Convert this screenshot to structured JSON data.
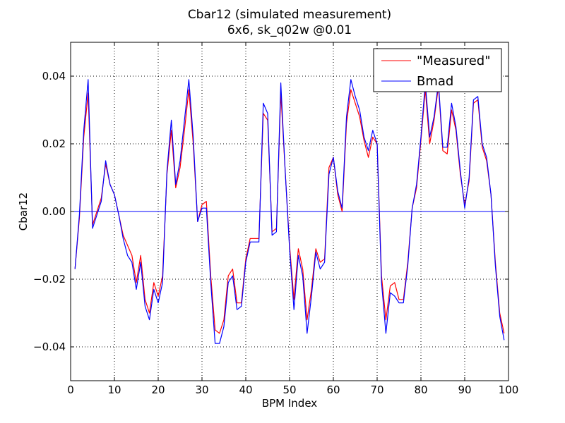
{
  "chart_data": {
    "type": "line",
    "title": "Cbar12 (simulated measurement)",
    "subtitle": "6x6, sk_q02w @0.01",
    "xlabel": "BPM Index",
    "ylabel": "Cbar12",
    "xlim": [
      0,
      100
    ],
    "ylim": [
      -0.05,
      0.05
    ],
    "xticks": [
      0,
      10,
      20,
      30,
      40,
      50,
      60,
      70,
      80,
      90,
      100
    ],
    "yticks": [
      -0.04,
      -0.02,
      0.0,
      0.02,
      0.04
    ],
    "xtick_labels": [
      "0",
      "10",
      "20",
      "30",
      "40",
      "50",
      "60",
      "70",
      "80",
      "90",
      "100"
    ],
    "ytick_labels": [
      "−0.04",
      "−0.02",
      "0.00",
      "0.02",
      "0.04"
    ],
    "grid": true,
    "legend_position": "top-right",
    "zero_line": true,
    "x": [
      1,
      2,
      3,
      4,
      5,
      6,
      7,
      8,
      9,
      10,
      11,
      12,
      13,
      14,
      15,
      16,
      17,
      18,
      19,
      20,
      21,
      22,
      23,
      24,
      25,
      26,
      27,
      28,
      29,
      30,
      31,
      32,
      33,
      34,
      35,
      36,
      37,
      38,
      39,
      40,
      41,
      42,
      43,
      44,
      45,
      46,
      47,
      48,
      49,
      50,
      51,
      52,
      53,
      54,
      55,
      56,
      57,
      58,
      59,
      60,
      61,
      62,
      63,
      64,
      65,
      66,
      67,
      68,
      69,
      70,
      71,
      72,
      73,
      74,
      75,
      76,
      77,
      78,
      79,
      80,
      81,
      82,
      83,
      84,
      85,
      86,
      87,
      88,
      89,
      90,
      91,
      92,
      93,
      94,
      95,
      96,
      97,
      98,
      99
    ],
    "series": [
      {
        "name": "\"Measured\"",
        "color": "#ff0000",
        "values": [
          -0.017,
          -0.002,
          0.022,
          0.035,
          -0.004,
          0.0,
          0.004,
          0.014,
          0.008,
          0.005,
          -0.001,
          -0.007,
          -0.01,
          -0.013,
          -0.021,
          -0.013,
          -0.026,
          -0.03,
          -0.021,
          -0.025,
          -0.019,
          0.011,
          0.024,
          0.007,
          0.013,
          0.024,
          0.036,
          0.02,
          -0.003,
          0.002,
          0.003,
          -0.019,
          -0.035,
          -0.036,
          -0.032,
          -0.019,
          -0.017,
          -0.027,
          -0.027,
          -0.014,
          -0.008,
          -0.008,
          -0.008,
          0.029,
          0.027,
          -0.006,
          -0.005,
          0.035,
          0.012,
          -0.01,
          -0.026,
          -0.011,
          -0.017,
          -0.032,
          -0.023,
          -0.011,
          -0.015,
          -0.014,
          0.013,
          0.016,
          0.005,
          0.0,
          0.026,
          0.036,
          0.032,
          0.028,
          0.021,
          0.016,
          0.022,
          0.02,
          -0.019,
          -0.032,
          -0.022,
          -0.021,
          -0.026,
          -0.026,
          -0.015,
          0.001,
          0.007,
          0.021,
          0.036,
          0.02,
          0.027,
          0.037,
          0.018,
          0.017,
          0.03,
          0.024,
          0.011,
          0.002,
          0.009,
          0.032,
          0.033,
          0.019,
          0.015,
          0.005,
          -0.015,
          -0.03,
          -0.036
        ]
      },
      {
        "name": "Bmad",
        "color": "#0000ff",
        "values": [
          -0.017,
          -0.001,
          0.024,
          0.039,
          -0.005,
          -0.001,
          0.003,
          0.015,
          0.008,
          0.005,
          -0.001,
          -0.008,
          -0.013,
          -0.015,
          -0.023,
          -0.015,
          -0.028,
          -0.032,
          -0.023,
          -0.027,
          -0.021,
          0.012,
          0.027,
          0.008,
          0.015,
          0.027,
          0.039,
          0.022,
          -0.003,
          0.001,
          0.001,
          -0.021,
          -0.039,
          -0.039,
          -0.034,
          -0.021,
          -0.019,
          -0.029,
          -0.028,
          -0.015,
          -0.009,
          -0.009,
          -0.009,
          0.032,
          0.029,
          -0.007,
          -0.006,
          0.038,
          0.012,
          -0.011,
          -0.029,
          -0.013,
          -0.019,
          -0.036,
          -0.025,
          -0.012,
          -0.017,
          -0.015,
          0.011,
          0.016,
          0.006,
          0.001,
          0.028,
          0.039,
          0.034,
          0.03,
          0.022,
          0.018,
          0.024,
          0.02,
          -0.021,
          -0.036,
          -0.024,
          -0.025,
          -0.027,
          -0.027,
          -0.016,
          0.001,
          0.008,
          0.022,
          0.038,
          0.022,
          0.028,
          0.038,
          0.019,
          0.019,
          0.032,
          0.025,
          0.012,
          0.001,
          0.01,
          0.033,
          0.034,
          0.02,
          0.016,
          0.005,
          -0.016,
          -0.031,
          -0.038
        ]
      }
    ]
  }
}
